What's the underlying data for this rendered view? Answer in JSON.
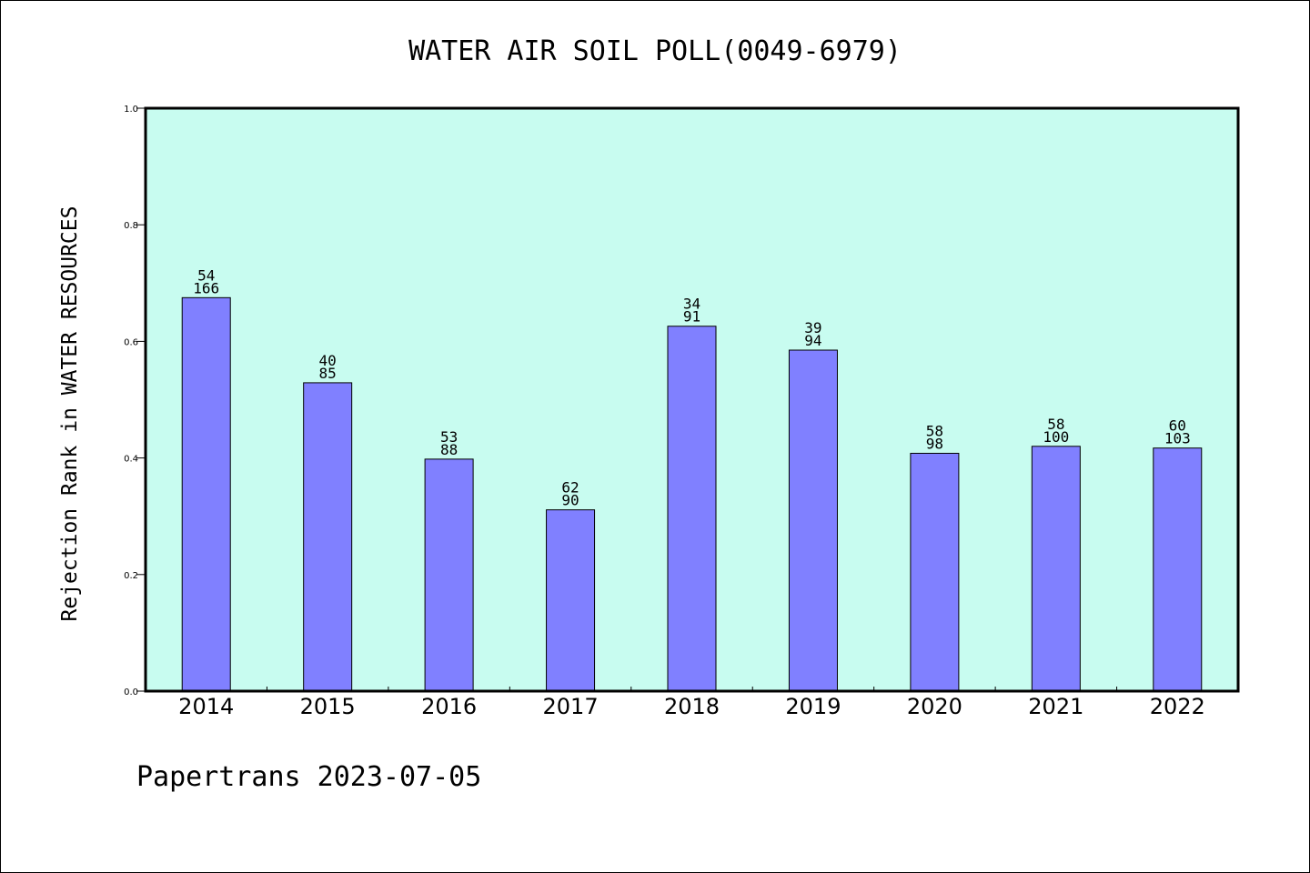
{
  "chart_data": {
    "type": "bar",
    "title": "WATER AIR SOIL POLL(0049-6979)",
    "xlabel": "",
    "ylabel": "Rejection Rank in WATER RESOURCES",
    "ylim": [
      0,
      1.0
    ],
    "yticks": [
      "0.0",
      "0.2",
      "0.4",
      "0.6",
      "0.8",
      "1.0"
    ],
    "categories": [
      "2014",
      "2015",
      "2016",
      "2017",
      "2018",
      "2019",
      "2020",
      "2021",
      "2022"
    ],
    "values": [
      0.675,
      0.529,
      0.398,
      0.311,
      0.626,
      0.585,
      0.408,
      0.42,
      0.417
    ],
    "rank": [
      "54",
      "40",
      "53",
      "62",
      "34",
      "39",
      "58",
      "58",
      "60"
    ],
    "total": [
      "166",
      "85",
      "88",
      "90",
      "91",
      "94",
      "98",
      "100",
      "103"
    ],
    "colors": {
      "bar": "#8080ff",
      "background": "#c8fcf0"
    },
    "grid": false
  },
  "footer": "Papertrans 2023-07-05"
}
